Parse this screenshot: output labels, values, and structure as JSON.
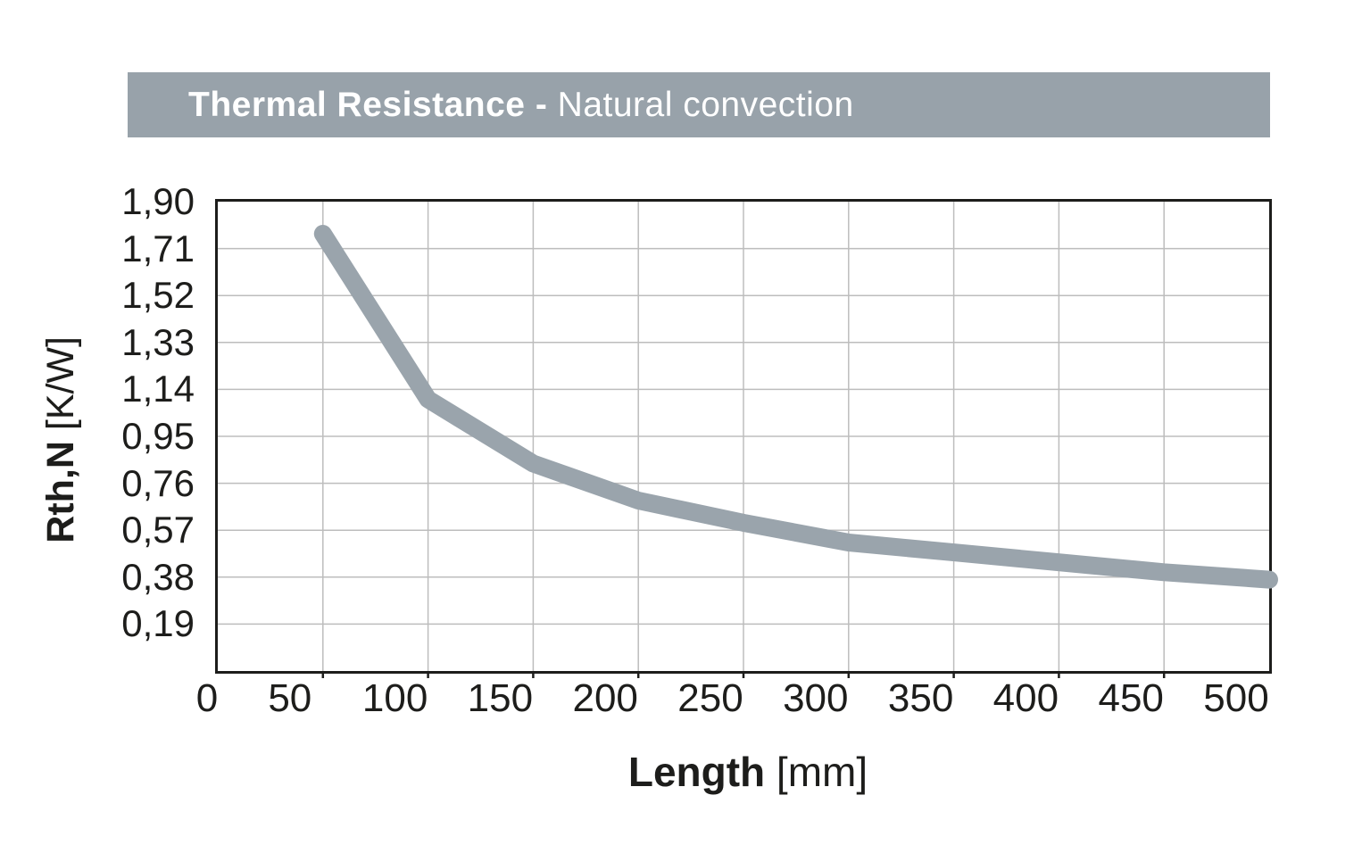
{
  "banner": {
    "title_bold": "Thermal Resistance - ",
    "title_regular": "Natural convection",
    "bg_color": "#98a2aa",
    "text_color": "#ffffff"
  },
  "chart_data": {
    "type": "line",
    "title": "Thermal Resistance - Natural convection",
    "xlabel": "Length [mm]",
    "xlabel_bold": "Length",
    "xlabel_unit": " [mm]",
    "ylabel": "Rth,N [K/W]",
    "ylabel_bold": "Rth,N",
    "ylabel_unit": " [K/W]",
    "x": [
      50,
      100,
      150,
      200,
      250,
      300,
      350,
      400,
      450,
      500
    ],
    "y": [
      1.77,
      1.1,
      0.84,
      0.69,
      0.6,
      0.52,
      0.48,
      0.44,
      0.4,
      0.37
    ],
    "series_name": "Rth,N natural convection",
    "xlim": [
      0,
      500
    ],
    "ylim": [
      0,
      1.9
    ],
    "x_tick_values": [
      0,
      50,
      100,
      150,
      200,
      250,
      300,
      350,
      400,
      450,
      500
    ],
    "x_tick_labels": [
      "0",
      "50",
      "100",
      "150",
      "200",
      "250",
      "300",
      "350",
      "400",
      "450",
      "500"
    ],
    "y_tick_values": [
      1.9,
      1.71,
      1.52,
      1.33,
      1.14,
      0.95,
      0.76,
      0.57,
      0.38,
      0.19
    ],
    "y_tick_labels": [
      "1,90",
      "1,71",
      "1,52",
      "1,33",
      "1,14",
      "0,95",
      "0,76",
      "0,57",
      "0,38",
      "0,19"
    ],
    "grid": true,
    "legend": false,
    "line_color": "#9aa4ac",
    "line_width": 20,
    "grid_color": "#bdbdbd",
    "axis_color": "#1d1d1b"
  }
}
